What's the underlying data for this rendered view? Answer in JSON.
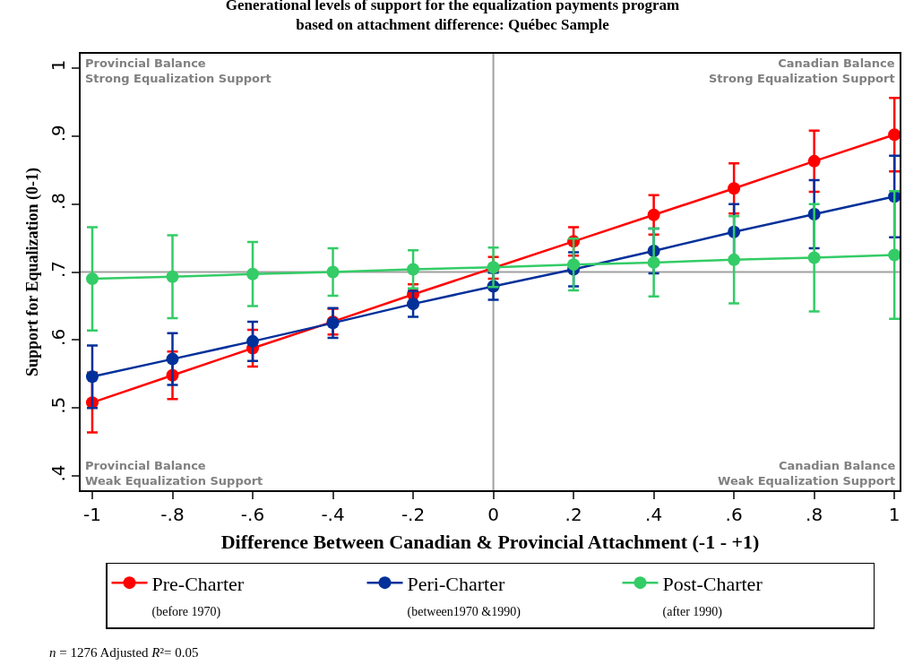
{
  "chart_data": {
    "type": "line",
    "title": "Generational levels of support for the equalization payments program\nbased on attachment difference: Québec Sample",
    "xlabel": "Difference Between Canadian & Provincial Attachment (-1 - +1)",
    "ylabel": "Support for Equalization (0-1)",
    "x": [
      -1,
      -0.8,
      -0.6,
      -0.4,
      -0.2,
      0,
      0.2,
      0.4,
      0.6,
      0.8,
      1
    ],
    "series": [
      {
        "name": "Pre-Charter\n(before 1970)",
        "color": "#ff0000",
        "values": [
          0.508,
          0.548,
          0.588,
          0.627,
          0.667,
          0.706,
          0.745,
          0.784,
          0.823,
          0.863,
          0.902
        ],
        "errors": [
          0.044,
          0.035,
          0.027,
          0.019,
          0.015,
          0.016,
          0.021,
          0.029,
          0.037,
          0.045,
          0.054
        ]
      },
      {
        "name": "Peri-Charter\n(between1970 &1990)",
        "color": "#00309a",
        "values": [
          0.546,
          0.572,
          0.598,
          0.625,
          0.653,
          0.679,
          0.704,
          0.731,
          0.759,
          0.785,
          0.811
        ],
        "errors": [
          0.046,
          0.038,
          0.029,
          0.022,
          0.019,
          0.02,
          0.025,
          0.033,
          0.041,
          0.05,
          0.06
        ]
      },
      {
        "name": "Post-Charter\n(after 1990)",
        "color": "#33cc66",
        "values": [
          0.69,
          0.693,
          0.697,
          0.7,
          0.704,
          0.707,
          0.711,
          0.714,
          0.718,
          0.721,
          0.725
        ],
        "errors": [
          0.076,
          0.061,
          0.047,
          0.035,
          0.028,
          0.029,
          0.038,
          0.05,
          0.064,
          0.079,
          0.094
        ]
      }
    ],
    "xlim": [
      -1.029,
      1.013
    ],
    "xticks": [
      {
        "value": -1,
        "label": "-1"
      },
      {
        "value": -0.8,
        "label": "-.8"
      },
      {
        "value": -0.6,
        "label": "-.6"
      },
      {
        "value": -0.4,
        "label": "-.4"
      },
      {
        "value": -0.2,
        "label": "-.2"
      },
      0,
      {
        "value": 0.2,
        "label": ".2"
      },
      {
        "value": 0.4,
        "label": ".4"
      },
      {
        "value": 0.6,
        "label": ".6"
      },
      {
        "value": 0.8,
        "label": ".8"
      },
      1
    ],
    "ylim": [
      0.379,
      1.021
    ],
    "yticks": [
      {
        "value": 0.4,
        "label": ".4"
      },
      {
        "value": 0.5,
        "label": ".5"
      },
      {
        "value": 0.6,
        "label": ".6"
      },
      {
        "value": 0.7,
        "label": ".7"
      },
      {
        "value": 0.8,
        "label": ".8"
      },
      {
        "value": 0.9,
        "label": ".9"
      },
      1
    ],
    "ref_lines": [
      {
        "axis": "x",
        "value": 0,
        "color": "#a0a0a0"
      },
      {
        "axis": "y",
        "value": 0.7,
        "color": "#a0a0a0"
      }
    ],
    "annotations": [
      "Provincial Balance\nStrong Equalization Support",
      "Canadian Balance\nStrong Equalization Support",
      "Provincial Balance\nWeak Equalization Support",
      "Canadian Balance\nWeak Equalization Support",
      "n = 1276 Adjusted R²= 0.05"
    ],
    "marker": "circle",
    "line_style": "solid",
    "grid": false,
    "legend": "bottom"
  }
}
